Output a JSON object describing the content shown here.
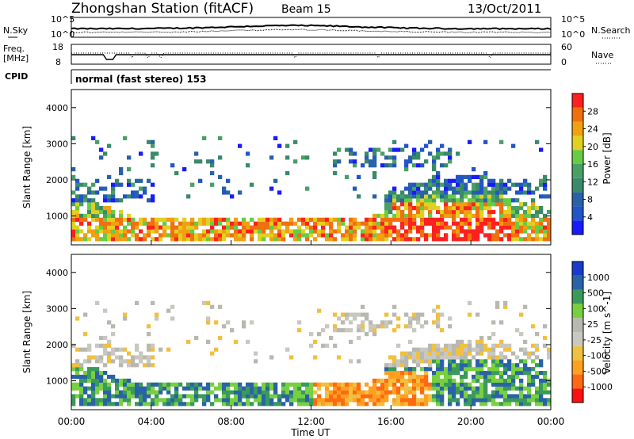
{
  "header": {
    "station": "Zhongshan Station (fitACF)",
    "beam": "Beam 15",
    "date": "13/Oct/2011"
  },
  "top_panels": {
    "nsky_label": "N.Sky",
    "nsearch_label": "N.Search",
    "noise_ticks_left": [
      "10^5",
      "10^0"
    ],
    "noise_ticks_right": [
      "10^5",
      "10^0"
    ],
    "freq_label": "Freq.",
    "freq_unit": "[MHz]",
    "freq_ticks": [
      "18",
      "8"
    ],
    "nave_label": "Nave",
    "nave_ticks": [
      "60",
      "0"
    ],
    "cpid_label": "CPID",
    "cpid_text": "normal (fast stereo) 153"
  },
  "colors": {
    "power": [
      "#1a1aff",
      "#2155c8",
      "#2a62a8",
      "#3a8a6a",
      "#4aa064",
      "#66cc44",
      "#e0d020",
      "#f0a010",
      "#f07010",
      "#ff2020"
    ],
    "velocity": [
      "#ff1010",
      "#ff6a10",
      "#ffa020",
      "#f0c040",
      "#c8c8c0",
      "#b8b8b0",
      "#78d040",
      "#3a9a5a",
      "#2a62a8",
      "#1a3acc"
    ],
    "panel_line": "#000000"
  },
  "chart_data": [
    {
      "type": "heatmap",
      "name": "power",
      "xlabel": "",
      "ylabel": "Slant Range [km]",
      "yticks": [
        "1000",
        "2000",
        "3000",
        "4000"
      ],
      "ylim": [
        200,
        4500
      ],
      "xlim": [
        "00:00",
        "24:00"
      ],
      "colorbar_label": "Power [dB]",
      "colorbar_ticks": [
        "4",
        "8",
        "12",
        "16",
        "20",
        "24",
        "28"
      ],
      "clim": [
        0,
        30
      ]
    },
    {
      "type": "heatmap",
      "name": "velocity",
      "xlabel": "Time UT",
      "xticks": [
        "00:00",
        "04:00",
        "08:00",
        "12:00",
        "16:00",
        "20:00",
        "00:00"
      ],
      "ylabel": "Slant Range [km]",
      "yticks": [
        "1000",
        "2000",
        "3000",
        "4000"
      ],
      "ylim": [
        200,
        4500
      ],
      "xlim": [
        "00:00",
        "24:00"
      ],
      "colorbar_label": "Velocity [m s^-1]",
      "colorbar_ticks": [
        "-1000",
        "-500",
        "-100",
        "-25",
        "25",
        "100",
        "500",
        "1000"
      ],
      "clim": [
        -1000,
        1000
      ]
    }
  ]
}
